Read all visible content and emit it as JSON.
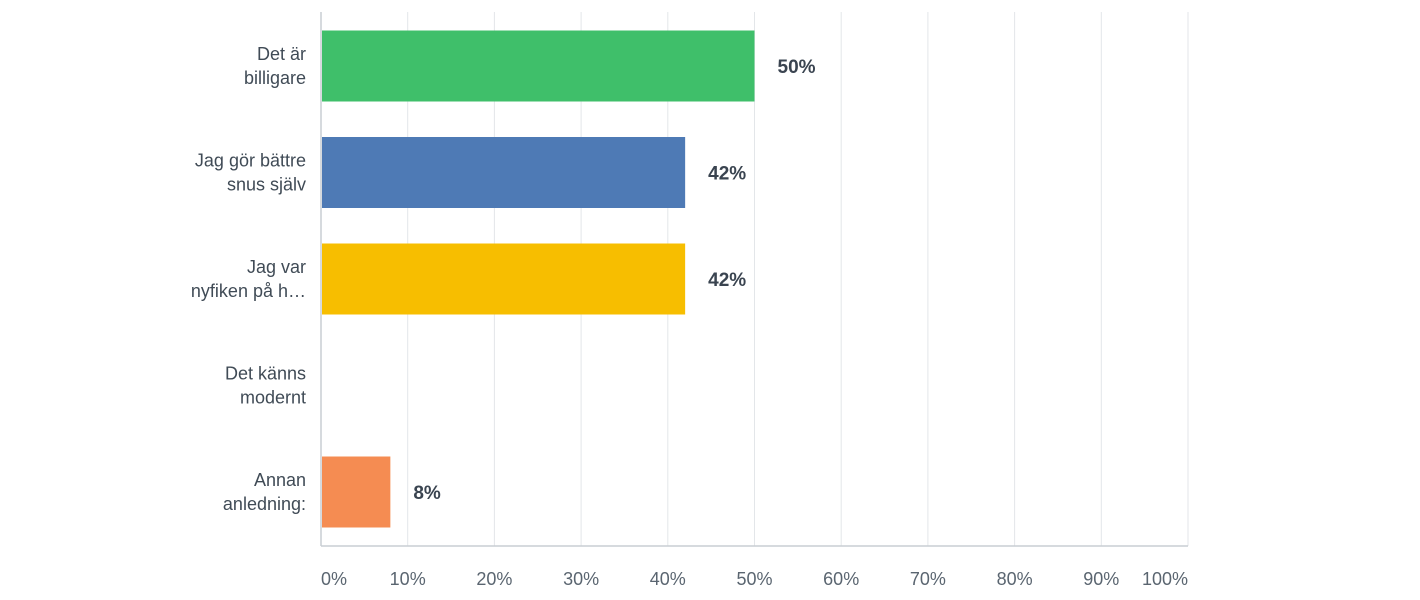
{
  "chart_data": {
    "type": "bar",
    "orientation": "horizontal",
    "categories": [
      [
        "Det är",
        "billigare"
      ],
      [
        "Jag gör bättre",
        "snus själv"
      ],
      [
        "Jag var",
        "nyfiken på h…"
      ],
      [
        "Det känns",
        "modernt"
      ],
      [
        "Annan",
        "anledning:"
      ]
    ],
    "values": [
      50,
      42,
      42,
      0,
      8
    ],
    "value_labels": [
      "50%",
      "42%",
      "42%",
      "",
      "8%"
    ],
    "colors": [
      "#3fbf6a",
      "#4e7ab5",
      "#f7be00",
      "#ee7f4a",
      "#f58c52"
    ],
    "xlim": [
      0,
      100
    ],
    "xticks": [
      0,
      10,
      20,
      30,
      40,
      50,
      60,
      70,
      80,
      90,
      100
    ],
    "xtick_labels": [
      "0%",
      "10%",
      "20%",
      "30%",
      "40%",
      "50%",
      "60%",
      "70%",
      "80%",
      "90%",
      "100%"
    ],
    "title": "",
    "xlabel": "",
    "ylabel": "",
    "grid": true,
    "legend": "none"
  }
}
